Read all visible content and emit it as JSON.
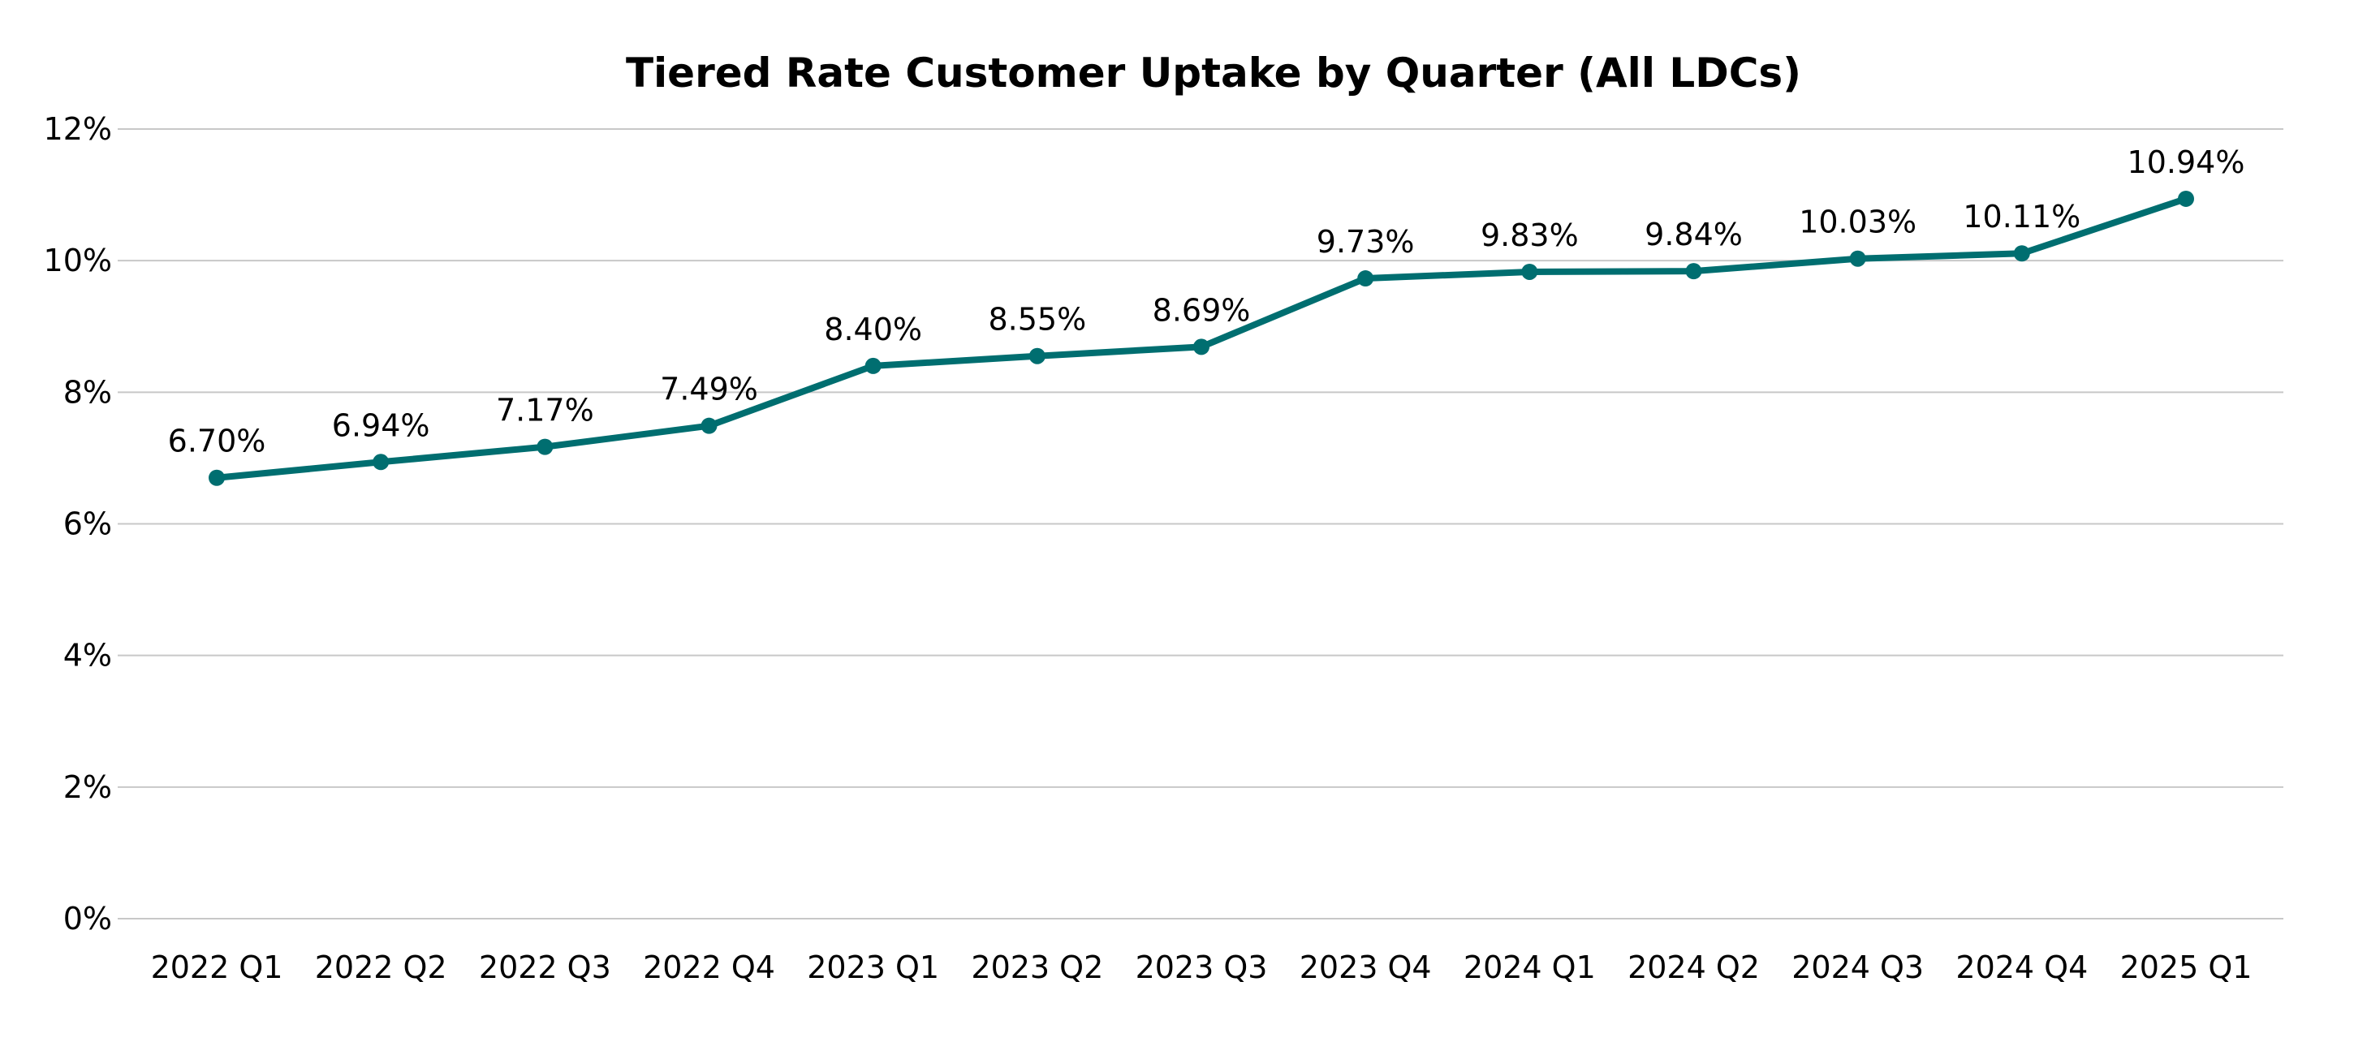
{
  "chart_data": {
    "type": "line",
    "title": "Tiered Rate Customer Uptake by Quarter (All LDCs)",
    "xlabel": "",
    "ylabel": "",
    "categories": [
      "2022 Q1",
      "2022 Q2",
      "2022 Q3",
      "2022 Q4",
      "2023 Q1",
      "2023 Q2",
      "2023 Q3",
      "2023 Q4",
      "2024 Q1",
      "2024 Q2",
      "2024 Q3",
      "2024 Q4",
      "2025 Q1"
    ],
    "series": [
      {
        "name": "Tiered Rate Customer Uptake",
        "values": [
          6.7,
          6.94,
          7.17,
          7.49,
          8.4,
          8.55,
          8.69,
          9.73,
          9.83,
          9.84,
          10.03,
          10.11,
          10.94
        ],
        "labels": [
          "6.70%",
          "6.94%",
          "7.17%",
          "7.49%",
          "8.40%",
          "8.55%",
          "8.69%",
          "9.73%",
          "9.83%",
          "9.84%",
          "10.03%",
          "10.11%",
          "10.94%"
        ],
        "color": "#006E70"
      }
    ],
    "ylim": [
      0,
      12
    ],
    "yticks": [
      0,
      2,
      4,
      6,
      8,
      10,
      12
    ],
    "ytick_labels": [
      "0%",
      "2%",
      "4%",
      "6%",
      "8%",
      "10%",
      "12%"
    ],
    "grid": true,
    "legend": "none",
    "markers": true,
    "data_labels": "above"
  }
}
